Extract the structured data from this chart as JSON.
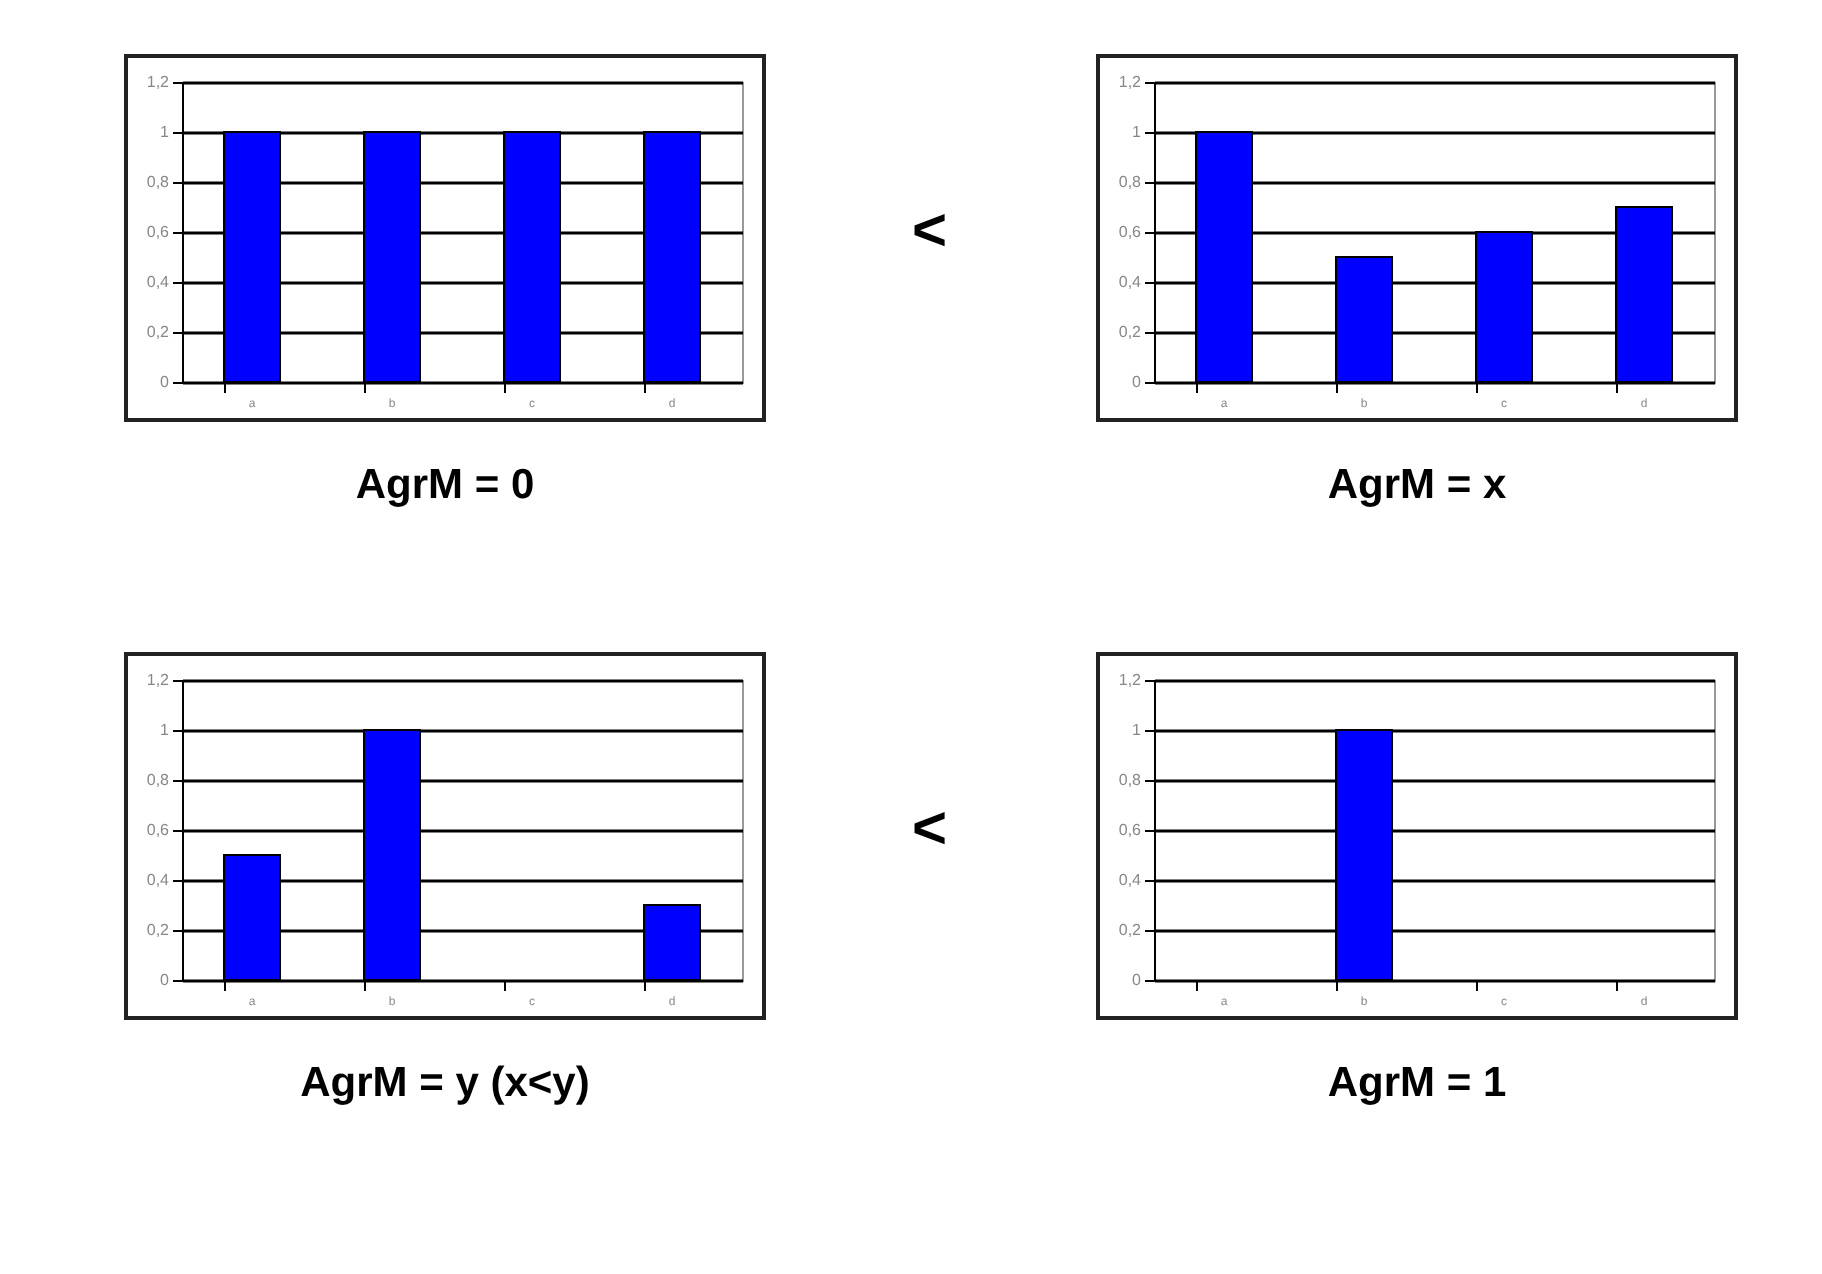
{
  "chart_data": [
    {
      "type": "bar",
      "title": "AgrM = 0",
      "categories": [
        "a",
        "b",
        "c",
        "d"
      ],
      "values": [
        1,
        1,
        1,
        1
      ],
      "color": "#0000ff",
      "ylim": [
        0,
        1.2
      ],
      "yticks": [
        {
          "value": 0,
          "label": "0"
        },
        {
          "value": 0.2,
          "label": "0,2"
        },
        {
          "value": 0.4,
          "label": "0,4"
        },
        {
          "value": 0.6,
          "label": "0,6"
        },
        {
          "value": 0.8,
          "label": "0,8"
        },
        {
          "value": 1,
          "label": "1"
        },
        {
          "value": 1.2,
          "label": "1,2"
        }
      ],
      "grid": "y",
      "annotations": [
        "<"
      ]
    },
    {
      "type": "bar",
      "title": "AgrM = x",
      "categories": [
        "a",
        "b",
        "c",
        "d"
      ],
      "values": [
        1,
        0.5,
        0.6,
        0.7
      ],
      "color": "#0000ff",
      "ylim": [
        0,
        1.2
      ],
      "yticks": [
        {
          "value": 0,
          "label": "0"
        },
        {
          "value": 0.2,
          "label": "0,2"
        },
        {
          "value": 0.4,
          "label": "0,4"
        },
        {
          "value": 0.6,
          "label": "0,6"
        },
        {
          "value": 0.8,
          "label": "0,8"
        },
        {
          "value": 1,
          "label": "1"
        },
        {
          "value": 1.2,
          "label": "1,2"
        }
      ],
      "grid": "y"
    },
    {
      "type": "bar",
      "title": "AgrM = y (x<y)",
      "categories": [
        "a",
        "b",
        "c",
        "d"
      ],
      "values": [
        0.5,
        1,
        0,
        0.3
      ],
      "color": "#0000ff",
      "ylim": [
        0,
        1.2
      ],
      "yticks": [
        {
          "value": 0,
          "label": "0"
        },
        {
          "value": 0.2,
          "label": "0,2"
        },
        {
          "value": 0.4,
          "label": "0,4"
        },
        {
          "value": 0.6,
          "label": "0,6"
        },
        {
          "value": 0.8,
          "label": "0,8"
        },
        {
          "value": 1,
          "label": "1"
        },
        {
          "value": 1.2,
          "label": "1,2"
        }
      ],
      "grid": "y",
      "annotations": [
        "<"
      ]
    },
    {
      "type": "bar",
      "title": "AgrM = 1",
      "categories": [
        "a",
        "b",
        "c",
        "d"
      ],
      "values": [
        0,
        1,
        0,
        0
      ],
      "color": "#0000ff",
      "ylim": [
        0,
        1.2
      ],
      "yticks": [
        {
          "value": 0,
          "label": "0"
        },
        {
          "value": 0.2,
          "label": "0,2"
        },
        {
          "value": 0.4,
          "label": "0,4"
        },
        {
          "value": 0.6,
          "label": "0,6"
        },
        {
          "value": 0.8,
          "label": "0,8"
        },
        {
          "value": 1,
          "label": "1"
        },
        {
          "value": 1.2,
          "label": "1,2"
        }
      ],
      "grid": "y"
    }
  ]
}
